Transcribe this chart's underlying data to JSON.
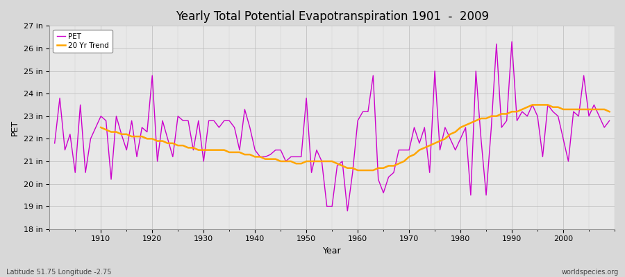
{
  "title": "Yearly Total Potential Evapotranspiration 1901  -  2009",
  "xlabel": "Year",
  "ylabel": "PET",
  "bottom_left_label": "Latitude 51.75 Longitude -2.75",
  "bottom_right_label": "worldspecies.org",
  "ylim": [
    18,
    27
  ],
  "yticks": [
    18,
    19,
    20,
    21,
    22,
    23,
    24,
    25,
    26,
    27
  ],
  "ytick_labels": [
    "18 in",
    "19 in",
    "20 in",
    "21 in",
    "22 in",
    "23 in",
    "24 in",
    "25 in",
    "26 in",
    "27 in"
  ],
  "pet_color": "#CC00CC",
  "trend_color": "#FFA500",
  "fig_facecolor": "#D8D8D8",
  "plot_facecolor": "#E8E8E8",
  "years": [
    1901,
    1902,
    1903,
    1904,
    1905,
    1906,
    1907,
    1908,
    1909,
    1910,
    1911,
    1912,
    1913,
    1914,
    1915,
    1916,
    1917,
    1918,
    1919,
    1920,
    1921,
    1922,
    1923,
    1924,
    1925,
    1926,
    1927,
    1928,
    1929,
    1930,
    1931,
    1932,
    1933,
    1934,
    1935,
    1936,
    1937,
    1938,
    1939,
    1940,
    1941,
    1942,
    1943,
    1944,
    1945,
    1946,
    1947,
    1948,
    1949,
    1950,
    1951,
    1952,
    1953,
    1954,
    1955,
    1956,
    1957,
    1958,
    1959,
    1960,
    1961,
    1962,
    1963,
    1964,
    1965,
    1966,
    1967,
    1968,
    1969,
    1970,
    1971,
    1972,
    1973,
    1974,
    1975,
    1976,
    1977,
    1978,
    1979,
    1980,
    1981,
    1982,
    1983,
    1984,
    1985,
    1986,
    1987,
    1988,
    1989,
    1990,
    1991,
    1992,
    1993,
    1994,
    1995,
    1996,
    1997,
    1998,
    1999,
    2000,
    2001,
    2002,
    2003,
    2004,
    2005,
    2006,
    2007,
    2008,
    2009
  ],
  "pet_values": [
    21.8,
    23.8,
    21.5,
    22.2,
    20.5,
    23.5,
    20.5,
    22.0,
    22.5,
    23.0,
    22.8,
    20.2,
    23.0,
    22.2,
    21.5,
    22.8,
    21.2,
    22.5,
    22.3,
    24.8,
    21.0,
    22.8,
    22.0,
    21.2,
    23.0,
    22.8,
    22.8,
    21.5,
    22.8,
    21.0,
    22.8,
    22.8,
    22.5,
    22.8,
    22.8,
    22.5,
    21.5,
    23.3,
    22.5,
    21.5,
    21.2,
    21.2,
    21.3,
    21.5,
    21.5,
    21.0,
    21.2,
    21.2,
    21.2,
    23.8,
    20.5,
    21.5,
    21.0,
    19.0,
    19.0,
    20.8,
    21.0,
    18.8,
    20.5,
    22.8,
    23.2,
    23.2,
    24.8,
    20.2,
    19.6,
    20.3,
    20.5,
    21.5,
    21.5,
    21.5,
    22.5,
    21.8,
    22.5,
    20.5,
    25.0,
    21.5,
    22.5,
    22.0,
    21.5,
    22.0,
    22.5,
    19.5,
    25.0,
    22.0,
    19.5,
    22.5,
    26.2,
    22.5,
    22.8,
    26.3,
    22.8,
    23.2,
    23.0,
    23.5,
    23.0,
    21.2,
    23.5,
    23.2,
    23.0,
    22.0,
    21.0,
    23.2,
    23.0,
    24.8,
    23.0,
    23.5,
    23.0,
    22.5,
    22.8
  ],
  "trend_years": [
    1910,
    1911,
    1912,
    1913,
    1914,
    1915,
    1916,
    1917,
    1918,
    1919,
    1920,
    1921,
    1922,
    1923,
    1924,
    1925,
    1926,
    1927,
    1928,
    1929,
    1930,
    1931,
    1932,
    1933,
    1934,
    1935,
    1936,
    1937,
    1938,
    1939,
    1940,
    1941,
    1942,
    1943,
    1944,
    1945,
    1946,
    1947,
    1948,
    1949,
    1950,
    1951,
    1952,
    1953,
    1954,
    1955,
    1956,
    1957,
    1958,
    1959,
    1960,
    1961,
    1962,
    1963,
    1964,
    1965,
    1966,
    1967,
    1968,
    1969,
    1970,
    1971,
    1972,
    1973,
    1974,
    1975,
    1976,
    1977,
    1978,
    1979,
    1980,
    1981,
    1982,
    1983,
    1984,
    1985,
    1986,
    1987,
    1988,
    1989,
    1990,
    1991,
    1992,
    1993,
    1994,
    1995,
    1996,
    1997,
    1998,
    1999,
    2000,
    2001,
    2002,
    2003,
    2004,
    2005,
    2006,
    2007,
    2008,
    2009
  ],
  "trend_values": [
    22.5,
    22.4,
    22.3,
    22.3,
    22.2,
    22.2,
    22.1,
    22.1,
    22.1,
    22.0,
    22.0,
    21.9,
    21.9,
    21.8,
    21.8,
    21.7,
    21.7,
    21.6,
    21.6,
    21.5,
    21.5,
    21.5,
    21.5,
    21.5,
    21.5,
    21.4,
    21.4,
    21.4,
    21.3,
    21.3,
    21.2,
    21.2,
    21.1,
    21.1,
    21.1,
    21.0,
    21.0,
    21.0,
    20.9,
    20.9,
    21.0,
    21.0,
    21.0,
    21.0,
    21.0,
    21.0,
    20.9,
    20.8,
    20.7,
    20.7,
    20.6,
    20.6,
    20.6,
    20.6,
    20.7,
    20.7,
    20.8,
    20.8,
    20.9,
    21.0,
    21.2,
    21.3,
    21.5,
    21.6,
    21.7,
    21.8,
    21.9,
    22.0,
    22.2,
    22.3,
    22.5,
    22.6,
    22.7,
    22.8,
    22.9,
    22.9,
    23.0,
    23.0,
    23.1,
    23.1,
    23.2,
    23.2,
    23.3,
    23.4,
    23.5,
    23.5,
    23.5,
    23.5,
    23.4,
    23.4,
    23.3,
    23.3,
    23.3,
    23.3,
    23.3,
    23.3,
    23.3,
    23.3,
    23.3,
    23.2
  ]
}
